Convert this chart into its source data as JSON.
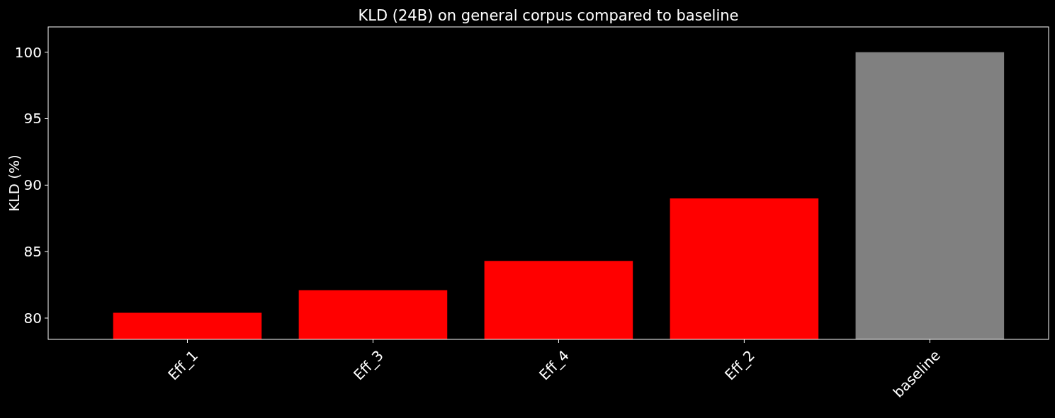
{
  "chart_data": {
    "type": "bar",
    "title": "KLD (24B) on general corpus compared to baseline",
    "ylabel": "KLD (%)",
    "categories": [
      "Eff_1",
      "Eff_3",
      "Eff_4",
      "Eff_2",
      "baseline"
    ],
    "values": [
      80.4,
      82.1,
      84.3,
      89.0,
      100
    ],
    "colors": [
      "#ff0000",
      "#ff0000",
      "#ff0000",
      "#ff0000",
      "#808080"
    ],
    "ylim": [
      78.4,
      101.9
    ],
    "yticks": [
      80,
      85,
      90,
      95,
      100
    ],
    "grid": false
  }
}
